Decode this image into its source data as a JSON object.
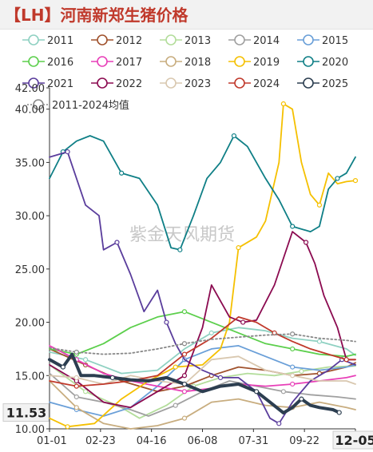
{
  "title": "【LH】河南新郑生猪价格",
  "watermark": "紫金天风期货",
  "last_value_label": "11.53",
  "last_date_label": "12-05",
  "chart_data": {
    "type": "line",
    "xlabel": "",
    "ylabel": "",
    "x_ticks": [
      "01-01",
      "02-23",
      "04-16",
      "06-08",
      "07-31",
      "09-22",
      "12-05"
    ],
    "y_ticks": [
      "10.00",
      "15.00",
      "20.00",
      "25.00",
      "30.00",
      "35.00",
      "40.00",
      "42.00"
    ],
    "ylim": [
      10,
      42
    ],
    "grid": false,
    "legend_position": "top",
    "series": [
      {
        "name": "2011",
        "color": "#8fd1c2",
        "values": [
          [
            0,
            17.2
          ],
          [
            40,
            16.5
          ],
          [
            80,
            15.2
          ],
          [
            120,
            15.5
          ],
          [
            150,
            17.5
          ],
          [
            180,
            19.0
          ],
          [
            210,
            19.5
          ],
          [
            240,
            19.2
          ],
          [
            270,
            18.5
          ],
          [
            300,
            18.2
          ],
          [
            330,
            17.5
          ],
          [
            340,
            16.9
          ]
        ]
      },
      {
        "name": "2012",
        "color": "#a0522d",
        "values": [
          [
            0,
            17.5
          ],
          [
            40,
            16.0
          ],
          [
            80,
            14.5
          ],
          [
            120,
            13.5
          ],
          [
            150,
            14.0
          ],
          [
            180,
            15.0
          ],
          [
            210,
            15.8
          ],
          [
            240,
            15.5
          ],
          [
            270,
            15.0
          ],
          [
            300,
            15.2
          ],
          [
            330,
            15.8
          ],
          [
            340,
            16.2
          ]
        ]
      },
      {
        "name": "2013",
        "color": "#b3dd9b",
        "values": [
          [
            0,
            16.0
          ],
          [
            40,
            13.5
          ],
          [
            80,
            12.0
          ],
          [
            100,
            11.0
          ],
          [
            130,
            12.2
          ],
          [
            160,
            14.0
          ],
          [
            190,
            14.8
          ],
          [
            220,
            15.2
          ],
          [
            250,
            15.0
          ],
          [
            280,
            15.4
          ],
          [
            310,
            15.8
          ],
          [
            340,
            15.9
          ]
        ]
      },
      {
        "name": "2014",
        "color": "#a0a0a0",
        "values": [
          [
            0,
            15.2
          ],
          [
            30,
            13.0
          ],
          [
            60,
            12.5
          ],
          [
            90,
            11.8
          ],
          [
            110,
            11.2
          ],
          [
            140,
            12.2
          ],
          [
            170,
            13.5
          ],
          [
            200,
            14.5
          ],
          [
            230,
            14.0
          ],
          [
            260,
            13.5
          ],
          [
            290,
            13.2
          ],
          [
            320,
            13.0
          ],
          [
            340,
            12.8
          ]
        ]
      },
      {
        "name": "2015",
        "color": "#6a9fd8",
        "values": [
          [
            0,
            12.5
          ],
          [
            30,
            11.8
          ],
          [
            60,
            11.2
          ],
          [
            90,
            12.0
          ],
          [
            120,
            14.0
          ],
          [
            150,
            16.5
          ],
          [
            180,
            17.5
          ],
          [
            210,
            17.8
          ],
          [
            240,
            16.8
          ],
          [
            270,
            15.8
          ],
          [
            300,
            15.5
          ],
          [
            330,
            15.8
          ],
          [
            340,
            16.0
          ]
        ]
      },
      {
        "name": "2016",
        "color": "#5ccf4c",
        "values": [
          [
            0,
            17.5
          ],
          [
            30,
            17.0
          ],
          [
            60,
            18.0
          ],
          [
            90,
            19.5
          ],
          [
            120,
            20.5
          ],
          [
            150,
            21.0
          ],
          [
            180,
            20.0
          ],
          [
            210,
            19.0
          ],
          [
            240,
            18.0
          ],
          [
            270,
            17.5
          ],
          [
            300,
            17.0
          ],
          [
            330,
            16.8
          ],
          [
            340,
            17.0
          ]
        ]
      },
      {
        "name": "2017",
        "color": "#e83fb8",
        "values": [
          [
            0,
            17.8
          ],
          [
            30,
            16.5
          ],
          [
            60,
            15.2
          ],
          [
            90,
            14.5
          ],
          [
            120,
            14.0
          ],
          [
            150,
            13.5
          ],
          [
            180,
            13.8
          ],
          [
            210,
            14.2
          ],
          [
            240,
            14.0
          ],
          [
            270,
            14.2
          ],
          [
            300,
            14.5
          ],
          [
            330,
            14.8
          ],
          [
            340,
            15.0
          ]
        ]
      },
      {
        "name": "2018",
        "color": "#c8ad7f",
        "values": [
          [
            0,
            14.5
          ],
          [
            30,
            12.0
          ],
          [
            60,
            10.5
          ],
          [
            90,
            10.0
          ],
          [
            120,
            10.3
          ],
          [
            150,
            11.0
          ],
          [
            180,
            12.5
          ],
          [
            210,
            12.8
          ],
          [
            240,
            12.2
          ],
          [
            270,
            12.0
          ],
          [
            300,
            12.5
          ],
          [
            330,
            12.0
          ],
          [
            340,
            11.8
          ]
        ]
      },
      {
        "name": "2019",
        "color": "#f5c000",
        "values": [
          [
            0,
            11.0
          ],
          [
            20,
            10.2
          ],
          [
            50,
            10.5
          ],
          [
            80,
            12.8
          ],
          [
            110,
            14.5
          ],
          [
            140,
            15.8
          ],
          [
            170,
            16.0
          ],
          [
            190,
            17.5
          ],
          [
            200,
            20.0
          ],
          [
            210,
            27.0
          ],
          [
            230,
            28.0
          ],
          [
            240,
            29.5
          ],
          [
            255,
            35.0
          ],
          [
            260,
            40.5
          ],
          [
            270,
            40.0
          ],
          [
            280,
            35.0
          ],
          [
            290,
            32.0
          ],
          [
            300,
            31.0
          ],
          [
            310,
            34.0
          ],
          [
            320,
            33.0
          ],
          [
            330,
            33.2
          ],
          [
            340,
            33.3
          ]
        ]
      },
      {
        "name": "2020",
        "color": "#0f7f86",
        "values": [
          [
            0,
            33.5
          ],
          [
            15,
            36.0
          ],
          [
            30,
            37.0
          ],
          [
            45,
            37.5
          ],
          [
            60,
            37.0
          ],
          [
            80,
            34.0
          ],
          [
            100,
            33.5
          ],
          [
            120,
            31.0
          ],
          [
            135,
            27.0
          ],
          [
            145,
            26.8
          ],
          [
            160,
            30.0
          ],
          [
            175,
            33.5
          ],
          [
            190,
            35.0
          ],
          [
            205,
            37.5
          ],
          [
            220,
            36.5
          ],
          [
            240,
            33.5
          ],
          [
            255,
            31.5
          ],
          [
            270,
            29.0
          ],
          [
            290,
            28.5
          ],
          [
            300,
            29.0
          ],
          [
            310,
            32.5
          ],
          [
            320,
            33.5
          ],
          [
            330,
            34.0
          ],
          [
            340,
            35.5
          ]
        ]
      },
      {
        "name": "2021",
        "color": "#5a3d9c",
        "values": [
          [
            0,
            35.5
          ],
          [
            20,
            36.0
          ],
          [
            40,
            31.0
          ],
          [
            55,
            30.0
          ],
          [
            60,
            26.8
          ],
          [
            75,
            27.5
          ],
          [
            90,
            24.5
          ],
          [
            105,
            21.0
          ],
          [
            120,
            23.0
          ],
          [
            130,
            20.0
          ],
          [
            140,
            18.0
          ],
          [
            150,
            16.5
          ],
          [
            170,
            15.5
          ],
          [
            190,
            14.8
          ],
          [
            210,
            14.8
          ],
          [
            230,
            13.5
          ],
          [
            245,
            11.0
          ],
          [
            255,
            10.5
          ],
          [
            270,
            12.5
          ],
          [
            290,
            14.5
          ],
          [
            310,
            15.5
          ],
          [
            325,
            16.5
          ],
          [
            340,
            16.0
          ]
        ]
      },
      {
        "name": "2022",
        "color": "#8b0a50",
        "values": [
          [
            0,
            16.0
          ],
          [
            30,
            14.5
          ],
          [
            60,
            12.5
          ],
          [
            90,
            12.0
          ],
          [
            120,
            13.5
          ],
          [
            150,
            15.0
          ],
          [
            170,
            19.5
          ],
          [
            180,
            23.5
          ],
          [
            200,
            20.5
          ],
          [
            215,
            20.0
          ],
          [
            230,
            20.2
          ],
          [
            250,
            23.5
          ],
          [
            270,
            28.5
          ],
          [
            285,
            27.5
          ],
          [
            295,
            25.5
          ],
          [
            305,
            22.5
          ],
          [
            320,
            19.5
          ],
          [
            330,
            16.5
          ],
          [
            340,
            16.5
          ]
        ]
      },
      {
        "name": "2023",
        "color": "#d9c8b0",
        "values": [
          [
            0,
            15.0
          ],
          [
            30,
            14.8
          ],
          [
            60,
            14.2
          ],
          [
            90,
            15.0
          ],
          [
            120,
            14.5
          ],
          [
            150,
            14.2
          ],
          [
            180,
            16.5
          ],
          [
            210,
            16.8
          ],
          [
            240,
            15.5
          ],
          [
            270,
            15.0
          ],
          [
            300,
            14.5
          ],
          [
            330,
            14.5
          ],
          [
            340,
            14.2
          ]
        ]
      },
      {
        "name": "2024",
        "color": "#c0392b",
        "values": [
          [
            0,
            14.5
          ],
          [
            30,
            14.0
          ],
          [
            60,
            14.2
          ],
          [
            90,
            14.5
          ],
          [
            120,
            15.0
          ],
          [
            150,
            17.0
          ],
          [
            180,
            18.5
          ],
          [
            210,
            20.5
          ],
          [
            230,
            20.0
          ],
          [
            250,
            19.0
          ],
          [
            270,
            18.2
          ],
          [
            290,
            17.5
          ],
          [
            310,
            17.0
          ],
          [
            330,
            16.5
          ],
          [
            340,
            16.5
          ]
        ]
      },
      {
        "name": "2025",
        "color": "#2c3e50",
        "values": [
          [
            0,
            16.5
          ],
          [
            15,
            15.8
          ],
          [
            25,
            17.0
          ],
          [
            35,
            15.0
          ],
          [
            50,
            15.0
          ],
          [
            70,
            14.8
          ],
          [
            90,
            14.6
          ],
          [
            110,
            14.5
          ],
          [
            130,
            14.8
          ],
          [
            150,
            14.2
          ],
          [
            170,
            13.5
          ],
          [
            190,
            14.0
          ],
          [
            210,
            14.2
          ],
          [
            230,
            13.5
          ],
          [
            245,
            12.5
          ],
          [
            260,
            11.5
          ],
          [
            270,
            12.0
          ],
          [
            280,
            12.8
          ],
          [
            290,
            12.2
          ],
          [
            300,
            12.0
          ],
          [
            315,
            11.8
          ],
          [
            322,
            11.53
          ]
        ]
      },
      {
        "name": "2011-2024均值",
        "color": "#888888",
        "dashed": true,
        "values": [
          [
            0,
            17.6
          ],
          [
            30,
            17.2
          ],
          [
            60,
            17.0
          ],
          [
            90,
            17.1
          ],
          [
            120,
            17.5
          ],
          [
            150,
            18.0
          ],
          [
            180,
            18.4
          ],
          [
            210,
            18.6
          ],
          [
            240,
            18.8
          ],
          [
            270,
            18.9
          ],
          [
            300,
            18.5
          ],
          [
            330,
            18.3
          ],
          [
            340,
            18.2
          ]
        ]
      }
    ]
  }
}
